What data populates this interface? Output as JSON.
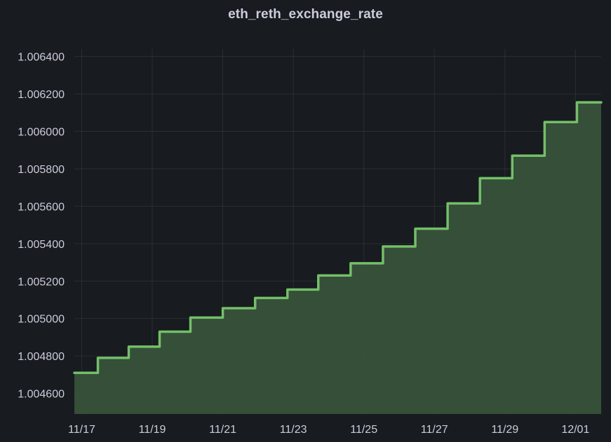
{
  "panel": {
    "title": "eth_reth_exchange_rate"
  },
  "chart_data": {
    "type": "area",
    "title": "eth_reth_exchange_rate",
    "xlabel": "",
    "ylabel": "",
    "interpolation": "step-after",
    "x_axis": {
      "type": "date",
      "ticks": [
        "2023-11-17",
        "2023-11-19",
        "2023-11-21",
        "2023-11-23",
        "2023-11-25",
        "2023-11-27",
        "2023-11-29",
        "2023-12-01"
      ],
      "tick_labels": [
        "11/17",
        "11/19",
        "11/21",
        "11/23",
        "11/25",
        "11/27",
        "11/29",
        "12/01"
      ],
      "range": [
        "2023-11-16T19:00:00",
        "2023-12-01T17:30:00"
      ]
    },
    "y_axis": {
      "ticks": [
        1.0046,
        1.0048,
        1.005,
        1.0052,
        1.0054,
        1.0056,
        1.0058,
        1.006,
        1.0062,
        1.0064
      ],
      "tick_labels": [
        "1.004600",
        "1.004800",
        "1.005000",
        "1.005200",
        "1.005400",
        "1.005600",
        "1.005800",
        "1.006000",
        "1.006200",
        "1.006400"
      ],
      "ylim": [
        1.00449,
        1.00644
      ]
    },
    "grid": true,
    "legend": "none",
    "series": [
      {
        "color": "#73bf69",
        "fill": "#37523a",
        "points": [
          {
            "x": "2023-11-16T19:00:00",
            "y": 1.00471
          },
          {
            "x": "2023-11-17T11:00:00",
            "y": 1.00479
          },
          {
            "x": "2023-11-18T08:00:00",
            "y": 1.00485
          },
          {
            "x": "2023-11-19T05:00:00",
            "y": 1.00493
          },
          {
            "x": "2023-11-20T02:00:00",
            "y": 1.005005
          },
          {
            "x": "2023-11-21T00:00:00",
            "y": 1.005055
          },
          {
            "x": "2023-11-21T22:00:00",
            "y": 1.00511
          },
          {
            "x": "2023-11-22T20:00:00",
            "y": 1.005155
          },
          {
            "x": "2023-11-23T17:00:00",
            "y": 1.00523
          },
          {
            "x": "2023-11-24T15:00:00",
            "y": 1.005295
          },
          {
            "x": "2023-11-25T13:00:00",
            "y": 1.005385
          },
          {
            "x": "2023-11-26T11:00:00",
            "y": 1.00548
          },
          {
            "x": "2023-11-27T09:00:00",
            "y": 1.005615
          },
          {
            "x": "2023-11-28T07:00:00",
            "y": 1.00575
          },
          {
            "x": "2023-11-29T05:00:00",
            "y": 1.00587
          },
          {
            "x": "2023-11-30T03:00:00",
            "y": 1.00605
          },
          {
            "x": "2023-12-01T01:00:00",
            "y": 1.006155
          },
          {
            "x": "2023-12-01T17:30:00",
            "y": 1.006155
          }
        ]
      }
    ]
  }
}
